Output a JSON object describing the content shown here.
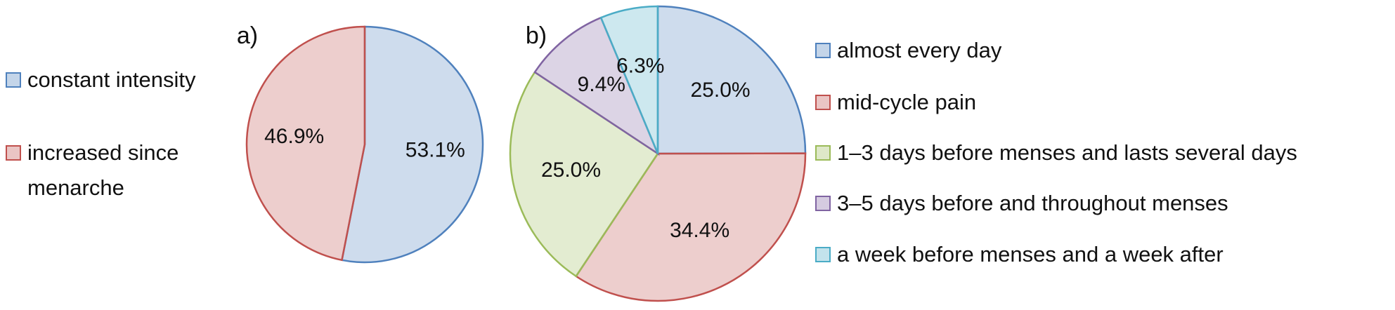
{
  "chart_data": [
    {
      "type": "pie",
      "title": "a)",
      "categories": [
        "constant intensity",
        "increased since menarche"
      ],
      "values": [
        53.1,
        46.9
      ],
      "value_labels": [
        "53.1%",
        "46.9%"
      ],
      "colors": [
        "#4f81bd",
        "#c0504d"
      ]
    },
    {
      "type": "pie",
      "title": "b)",
      "categories": [
        "almost every day",
        "mid-cycle pain",
        "1–3 days before menses and lasts several days",
        "3–5 days before and throughout menses",
        "a week before menses and a week after"
      ],
      "values": [
        25.0,
        34.4,
        25.0,
        9.4,
        6.3
      ],
      "value_labels": [
        "25.0%",
        "34.4%",
        "25.0%",
        "9.4%",
        "6.3%"
      ],
      "colors": [
        "#4f81bd",
        "#c0504d",
        "#9bbb59",
        "#8064a2",
        "#4bacc6"
      ]
    }
  ]
}
